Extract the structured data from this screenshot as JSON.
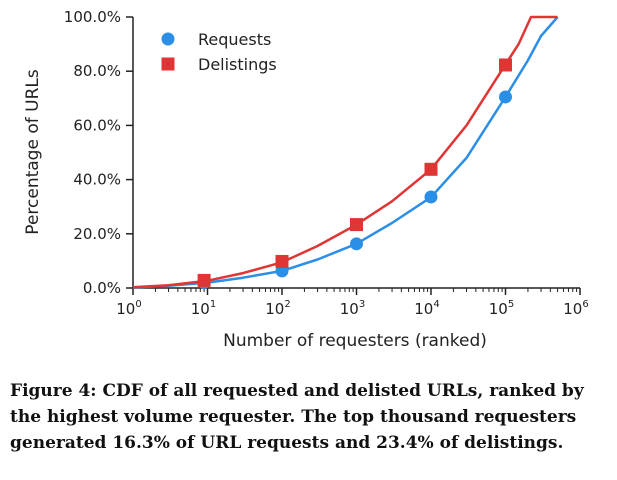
{
  "caption": "Figure 4: CDF of all requested and delisted URLs, ranked by the highest volume requester. The top thousand requesters generated 16.3% of URL requests and 23.4% of delistings.",
  "colors": {
    "requests": "#2b8fe8",
    "delistings": "#e03535",
    "axis": "#222222"
  },
  "chart_data": {
    "type": "line",
    "title": "",
    "xlabel": "Number of requesters (ranked)",
    "ylabel": "Percentage of URLs",
    "xscale": "log",
    "xlim_exp": [
      0,
      6
    ],
    "ylim": [
      0,
      100
    ],
    "grid": false,
    "legend_position": "top-left",
    "x_ticks": [
      {
        "base": "10",
        "exp": "0"
      },
      {
        "base": "10",
        "exp": "1"
      },
      {
        "base": "10",
        "exp": "2"
      },
      {
        "base": "10",
        "exp": "3"
      },
      {
        "base": "10",
        "exp": "4"
      },
      {
        "base": "10",
        "exp": "5"
      },
      {
        "base": "10",
        "exp": "6"
      }
    ],
    "y_ticks": [
      {
        "value": 0,
        "label": "0.0%"
      },
      {
        "value": 20,
        "label": "20.0%"
      },
      {
        "value": 40,
        "label": "40.0%"
      },
      {
        "value": 60,
        "label": "60.0%"
      },
      {
        "value": 80,
        "label": "80.0%"
      },
      {
        "value": 100,
        "label": "100.0%"
      }
    ],
    "series": [
      {
        "name": "Requests",
        "color": "#2b8fe8",
        "marker": "circle",
        "line": [
          [
            1,
            0.2
          ],
          [
            3,
            0.8
          ],
          [
            10,
            2.0
          ],
          [
            30,
            3.8
          ],
          [
            100,
            6.3
          ],
          [
            300,
            10.5
          ],
          [
            1000,
            16.3
          ],
          [
            3000,
            24
          ],
          [
            10000,
            33.5
          ],
          [
            30000,
            48
          ],
          [
            100000,
            70.5
          ],
          [
            200000,
            84
          ],
          [
            300000,
            93
          ],
          [
            500000,
            100
          ]
        ],
        "markers": [
          [
            9,
            2.0
          ],
          [
            100,
            6.3
          ],
          [
            1000,
            16.3
          ],
          [
            10000,
            33.6
          ],
          [
            100000,
            70.5
          ]
        ]
      },
      {
        "name": "Delistings",
        "color": "#e03535",
        "marker": "square",
        "line": [
          [
            1,
            0.3
          ],
          [
            3,
            1.0
          ],
          [
            10,
            2.7
          ],
          [
            30,
            5.5
          ],
          [
            100,
            9.5
          ],
          [
            300,
            15.5
          ],
          [
            1000,
            23.4
          ],
          [
            3000,
            32
          ],
          [
            10000,
            43.8
          ],
          [
            30000,
            60
          ],
          [
            100000,
            82.5
          ],
          [
            150000,
            90
          ],
          [
            220000,
            100
          ],
          [
            500000,
            100
          ]
        ],
        "markers": [
          [
            9,
            2.8
          ],
          [
            100,
            9.8
          ],
          [
            1000,
            23.4
          ],
          [
            10000,
            43.8
          ],
          [
            100000,
            82.3
          ]
        ]
      }
    ]
  }
}
